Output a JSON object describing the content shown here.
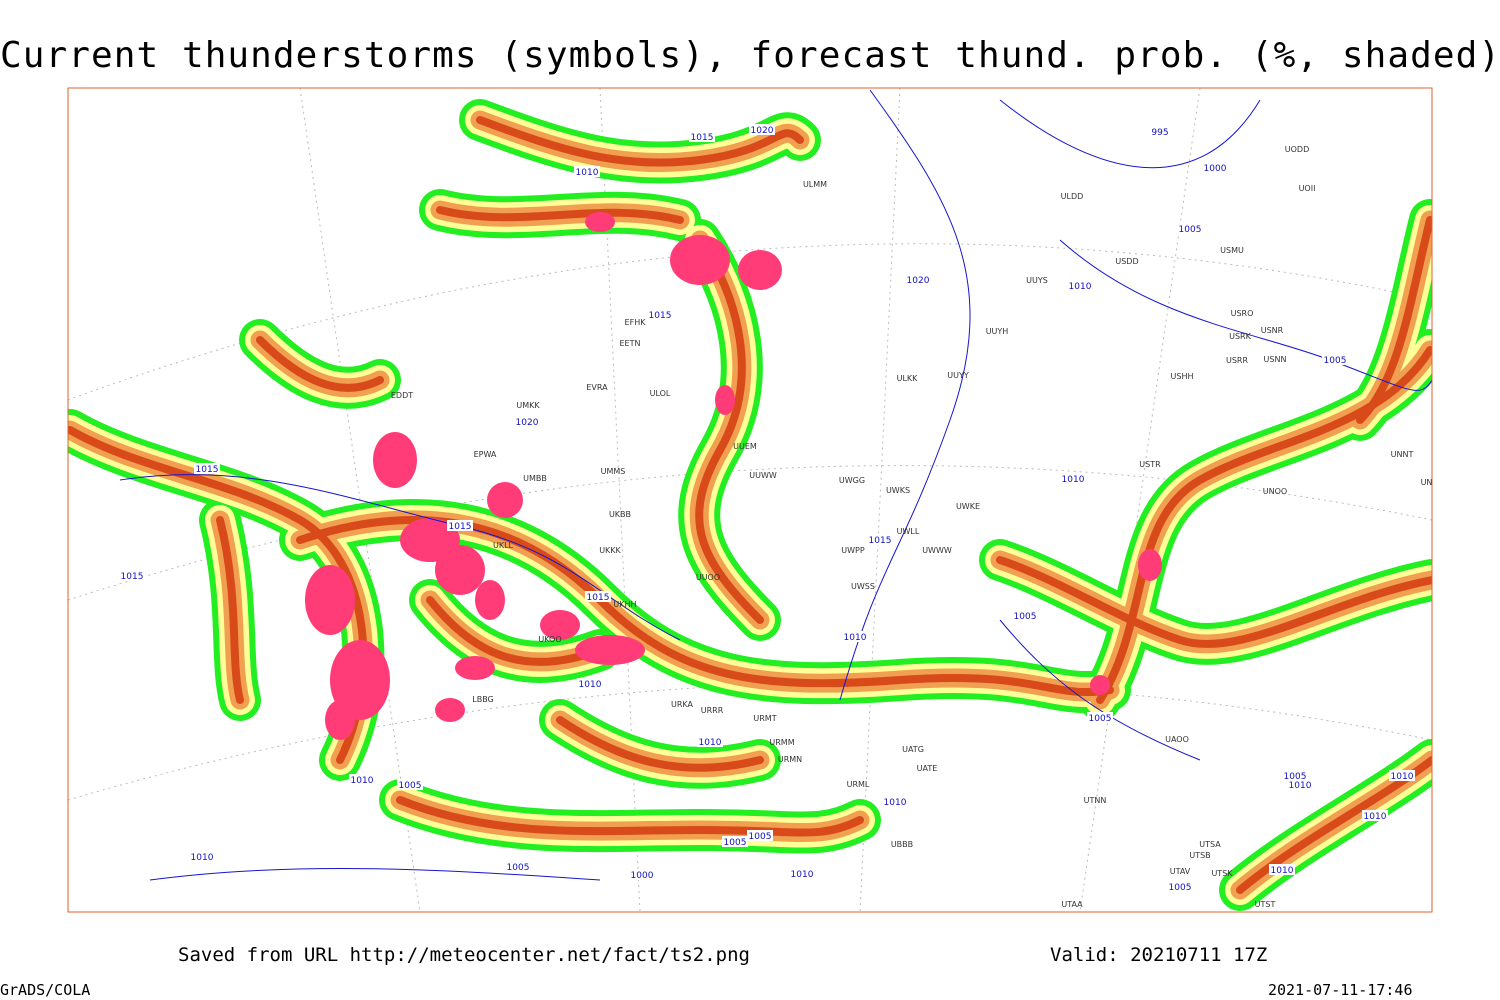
{
  "title": "Current thunderstorms (symbols), forecast thund. prob. (%, shaded)",
  "footer": {
    "source": "Saved from URL http://meteocenter.net/fact/ts2.png",
    "valid": "Valid: 20210711 17Z",
    "software": "GrADS/COLA",
    "timestamp": "2021-07-11-17:46"
  },
  "isobar_labels": [
    "1015",
    "1020",
    "1010",
    "995",
    "1000",
    "1005",
    "1020",
    "1010",
    "1015",
    "1020",
    "1015",
    "1015",
    "1015",
    "1015",
    "1015",
    "1010",
    "1005",
    "1005",
    "1010",
    "1010",
    "1005",
    "1010",
    "1010",
    "1005",
    "1005",
    "1010",
    "1010",
    "1010",
    "1005",
    "1005",
    "1010",
    "1010",
    "1005",
    "1000",
    "1010",
    "1010",
    "1005"
  ],
  "stations": [
    "ULMM",
    "ULDD",
    "UODD",
    "UOII",
    "USMU",
    "USDD",
    "UUYS",
    "USRO",
    "USRK",
    "USNR",
    "USRR",
    "USNN",
    "USHH",
    "UUYH",
    "UUYY",
    "ULKK",
    "EFHK",
    "EETN",
    "EVRA",
    "ULOL",
    "UMKK",
    "EDDT",
    "EPWA",
    "UUEM",
    "UUWW",
    "UWGG",
    "UWKS",
    "UWKE",
    "UWLL",
    "UWWW",
    "UWPP",
    "UWSS",
    "UMMS",
    "UMBB",
    "UKBB",
    "UKLL",
    "UKKK",
    "UUOO",
    "UKHH",
    "UKOO",
    "USTR",
    "UNNT",
    "UNBB",
    "UNOO",
    "UAOO",
    "UTNN",
    "UTSA",
    "UTSB",
    "UTAV",
    "UTSK",
    "UTAA",
    "UTST",
    "URMT",
    "URMM",
    "URMN",
    "URML",
    "UBBB",
    "UATG",
    "UATE",
    "URKA",
    "URRR",
    "LBBG"
  ]
}
